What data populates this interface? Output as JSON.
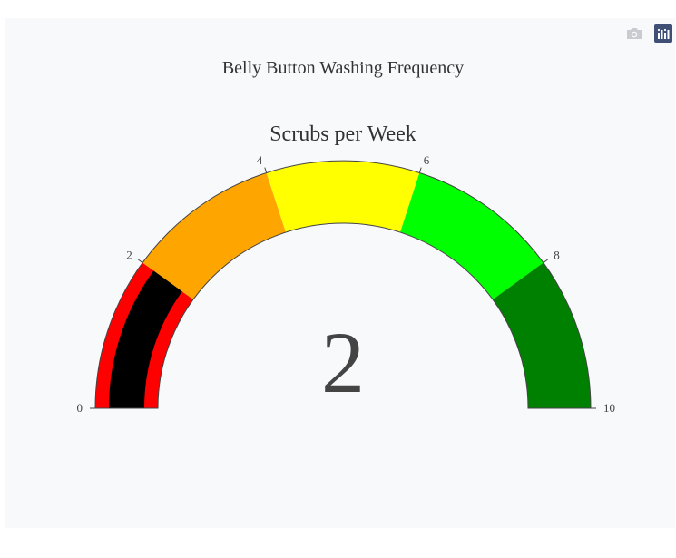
{
  "toolbar": {
    "icons": [
      "camera-icon",
      "plotly-logo-icon"
    ]
  },
  "chart_data": {
    "type": "gauge",
    "title": "Belly Button Washing Frequency",
    "subtitle": "Scrubs per Week",
    "value": 2,
    "value_label": "2",
    "range": [
      0,
      10
    ],
    "ticks": [
      0,
      2,
      4,
      6,
      8,
      10
    ],
    "tick_labels": [
      "0",
      "2",
      "4",
      "6",
      "8",
      "10"
    ],
    "bar_color": "#000000",
    "steps": [
      {
        "range": [
          0,
          2
        ],
        "color": "#ff0000"
      },
      {
        "range": [
          2,
          4
        ],
        "color": "#ffa500"
      },
      {
        "range": [
          4,
          6
        ],
        "color": "#ffff00"
      },
      {
        "range": [
          6,
          8
        ],
        "color": "#00ff00"
      },
      {
        "range": [
          8,
          10
        ],
        "color": "#008000"
      }
    ]
  }
}
